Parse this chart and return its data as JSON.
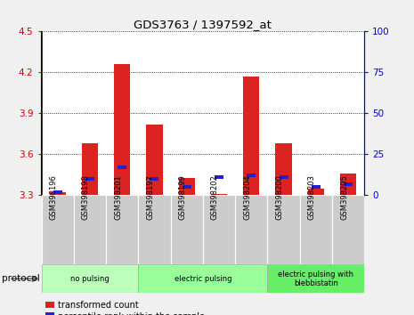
{
  "title": "GDS3763 / 1397592_at",
  "samples": [
    "GSM398196",
    "GSM398198",
    "GSM398201",
    "GSM398197",
    "GSM398199",
    "GSM398202",
    "GSM398204",
    "GSM398200",
    "GSM398203",
    "GSM398205"
  ],
  "transformed_count": [
    3.32,
    3.68,
    4.26,
    3.82,
    3.43,
    3.31,
    4.17,
    3.68,
    3.35,
    3.46
  ],
  "percentile_rank": [
    2,
    10,
    17,
    10,
    5,
    11,
    12,
    11,
    5,
    7
  ],
  "ylim_left": [
    3.3,
    4.5
  ],
  "ylim_right": [
    0,
    100
  ],
  "yticks_left": [
    3.3,
    3.6,
    3.9,
    4.2,
    4.5
  ],
  "yticks_right": [
    0,
    25,
    50,
    75,
    100
  ],
  "groups": [
    {
      "label": "no pulsing",
      "start": 0,
      "end": 3,
      "color": "#bbffbb"
    },
    {
      "label": "electric pulsing",
      "start": 3,
      "end": 7,
      "color": "#99ff99"
    },
    {
      "label": "electric pulsing with\nblebbistatin",
      "start": 7,
      "end": 10,
      "color": "#66ee66"
    }
  ],
  "bar_color_red": "#dd2222",
  "bar_color_blue": "#2222cc",
  "bar_width": 0.5,
  "tick_bg_color": "#cccccc",
  "plot_bg_color": "#ffffff",
  "left_axis_color": "#cc0000",
  "right_axis_color": "#0000cc",
  "fig_bg_color": "#f0f0f0"
}
